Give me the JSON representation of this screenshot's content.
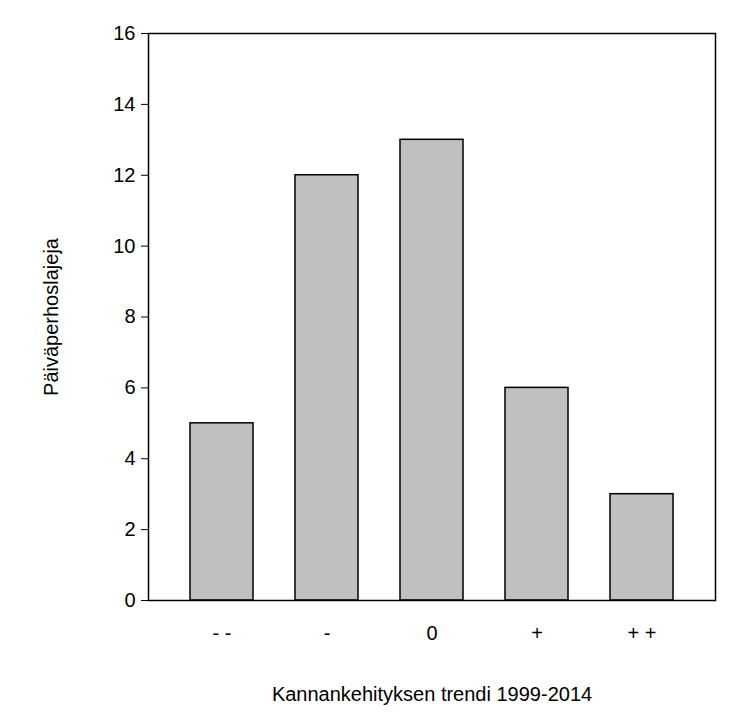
{
  "chart_data": {
    "type": "bar",
    "x_label": "Kannankehityksen trendi 1999-2014",
    "y_label": "Päiväperhoslajeja",
    "categories": [
      "- -",
      "-",
      "0",
      "+",
      "+ +"
    ],
    "values": [
      5,
      12,
      13,
      6,
      3
    ],
    "color": "#c0c0c0",
    "ylim": [
      0,
      16
    ],
    "yticks": [
      0,
      2,
      4,
      6,
      8,
      10,
      12,
      14,
      16
    ],
    "grid": false
  }
}
